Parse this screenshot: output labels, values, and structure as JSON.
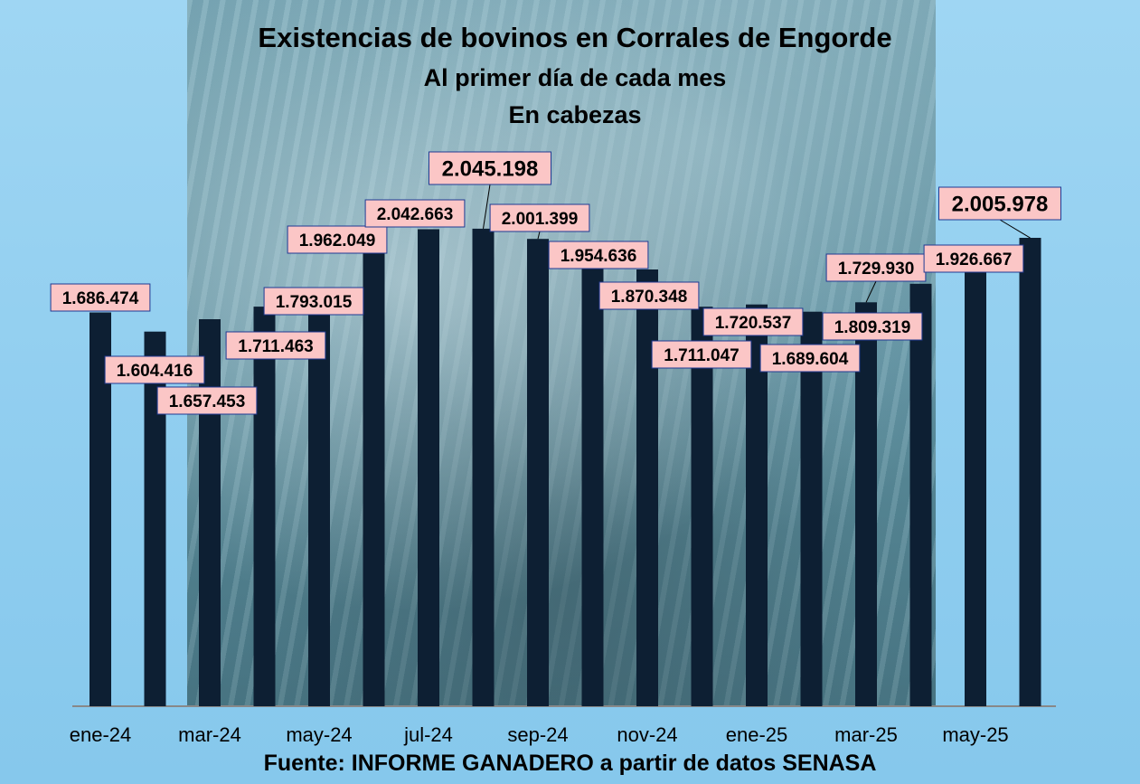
{
  "chart_data": {
    "type": "bar",
    "title": "Existencias de bovinos en Corrales de Engorde",
    "subtitle": "Al primer día de cada mes",
    "unit": "En cabezas",
    "categories": [
      "ene-24",
      "feb-24",
      "mar-24",
      "abr-24",
      "may-24",
      "jun-24",
      "jul-24",
      "ago-24",
      "sep-24",
      "oct-24",
      "nov-24",
      "dic-24",
      "ene-25",
      "feb-25",
      "mar-25",
      "abr-25",
      "may-25",
      "jun-25"
    ],
    "tick_labels": [
      "ene-24",
      "",
      "mar-24",
      "",
      "may-24",
      "",
      "jul-24",
      "",
      "sep-24",
      "",
      "nov-24",
      "",
      "ene-25",
      "",
      "mar-25",
      "",
      "may-25",
      ""
    ],
    "values": [
      1686474,
      1604416,
      1657453,
      1711463,
      1793015,
      1962049,
      2042663,
      2045198,
      2001399,
      1954636,
      1870348,
      1711047,
      1720537,
      1689604,
      1729930,
      1809319,
      1926667,
      2005978
    ],
    "data_labels": [
      "1.686.474",
      "1.604.416",
      "1.657.453",
      "1.711.463",
      "1.793.015",
      "1.962.049",
      "2.042.663",
      "2.045.198",
      "2.001.399",
      "1.954.636",
      "1.870.348",
      "1.711.047",
      "1.720.537",
      "1.689.604",
      "1.729.930",
      "1.809.319",
      "1.926.667",
      "2.005.978"
    ],
    "highlighted_labels": [
      7,
      17
    ],
    "ylim": [
      0,
      2250000
    ],
    "grid": false,
    "legend": "none",
    "colors": {
      "bar": "#0d1f33",
      "label_bg": "#fbc6c6",
      "label_border": "#1f3a93",
      "axis": "#888888"
    }
  },
  "source": "Fuente: INFORME GANADERO  a partir de datos SENASA"
}
